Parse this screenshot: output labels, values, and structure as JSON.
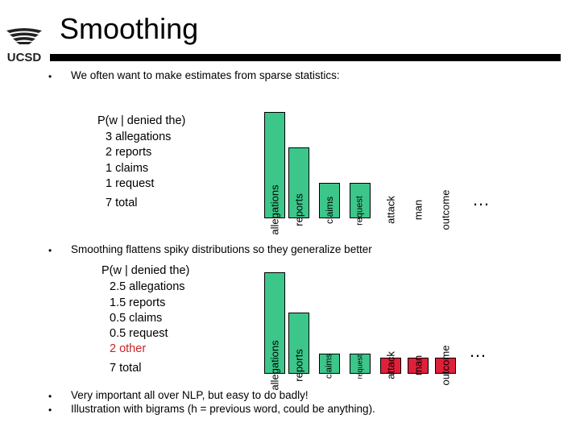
{
  "slide": {
    "title": "Smoothing",
    "logo_text": "UCSD",
    "bullets": [
      "We often want to make estimates from sparse statistics:",
      "Smoothing flattens spiky distributions so they generalize better",
      "Very important all over NLP, but easy to do badly!",
      "Illustration with bigrams (h = previous word, could be anything)."
    ],
    "bullet_symbol": "•"
  },
  "panel1": {
    "header": "P(w | denied the)",
    "lines": [
      "3 allegations",
      "2 reports",
      "1 claims",
      "1 request"
    ],
    "total": "7 total"
  },
  "panel2": {
    "header": "P(w | denied the)",
    "lines": [
      "2.5 allegations",
      "1.5 reports",
      "0.5 claims",
      "0.5 request"
    ],
    "other": "2 other",
    "total": "7 total"
  },
  "ellipsis": "…",
  "colors": {
    "observed": "#3cc68a",
    "smoothed_other": "#e0203a",
    "rule": "#000000",
    "other_text": "#cc2222"
  },
  "chart_data": [
    {
      "type": "bar",
      "categories": [
        "allegations",
        "reports",
        "claims",
        "request",
        "attack",
        "man",
        "outcome"
      ],
      "values": [
        3,
        2,
        1,
        1,
        0,
        0,
        0
      ]
    },
    {
      "type": "bar",
      "categories": [
        "allegations",
        "reports",
        "claims",
        "request",
        "attack",
        "man",
        "outcome"
      ],
      "values": [
        2.5,
        1.5,
        0.5,
        0.5,
        0.4,
        0.4,
        0.4
      ]
    }
  ]
}
